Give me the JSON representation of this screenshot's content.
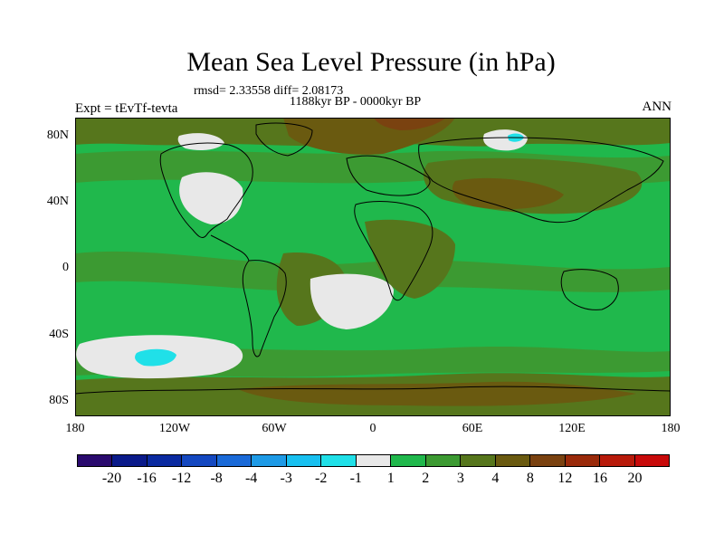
{
  "title": "Mean Sea Level Pressure (in hPa)",
  "stats": "rmsd= 2.33558 diff= 2.08173",
  "period": "1188kyr BP - 0000kyr BP",
  "experiment": "Expt = tEvTf-tevta",
  "season": "ANN",
  "lat_labels": [
    "80N",
    "40N",
    "0",
    "40S",
    "80S"
  ],
  "lon_labels": [
    "180",
    "120W",
    "60W",
    "0",
    "60E",
    "120E",
    "180"
  ],
  "colorbar": {
    "colors": [
      "#2a0a6e",
      "#0a1a8a",
      "#0a2aa0",
      "#1448c0",
      "#1a6ad8",
      "#1e9ae6",
      "#18c0f0",
      "#20e0e8",
      "#e8e8e8",
      "#20b84c",
      "#3c9a32",
      "#56761c",
      "#6a5a10",
      "#7a4210",
      "#9a2a0a",
      "#b81a0a",
      "#c80a0a"
    ],
    "labels": [
      "-20",
      "-16",
      "-12",
      "-8",
      "-4",
      "-3",
      "-2",
      "-1",
      "1",
      "2",
      "3",
      "4",
      "8",
      "12",
      "16",
      "20"
    ]
  },
  "map_colors": {
    "ocean": "#20b84c",
    "mid": "#3c9a32",
    "high": "#56761c",
    "higher": "#6a5a10",
    "highest": "#7a4210",
    "neutral": "#e8e8e8",
    "low": "#20e0e8",
    "coast": "#000000"
  }
}
